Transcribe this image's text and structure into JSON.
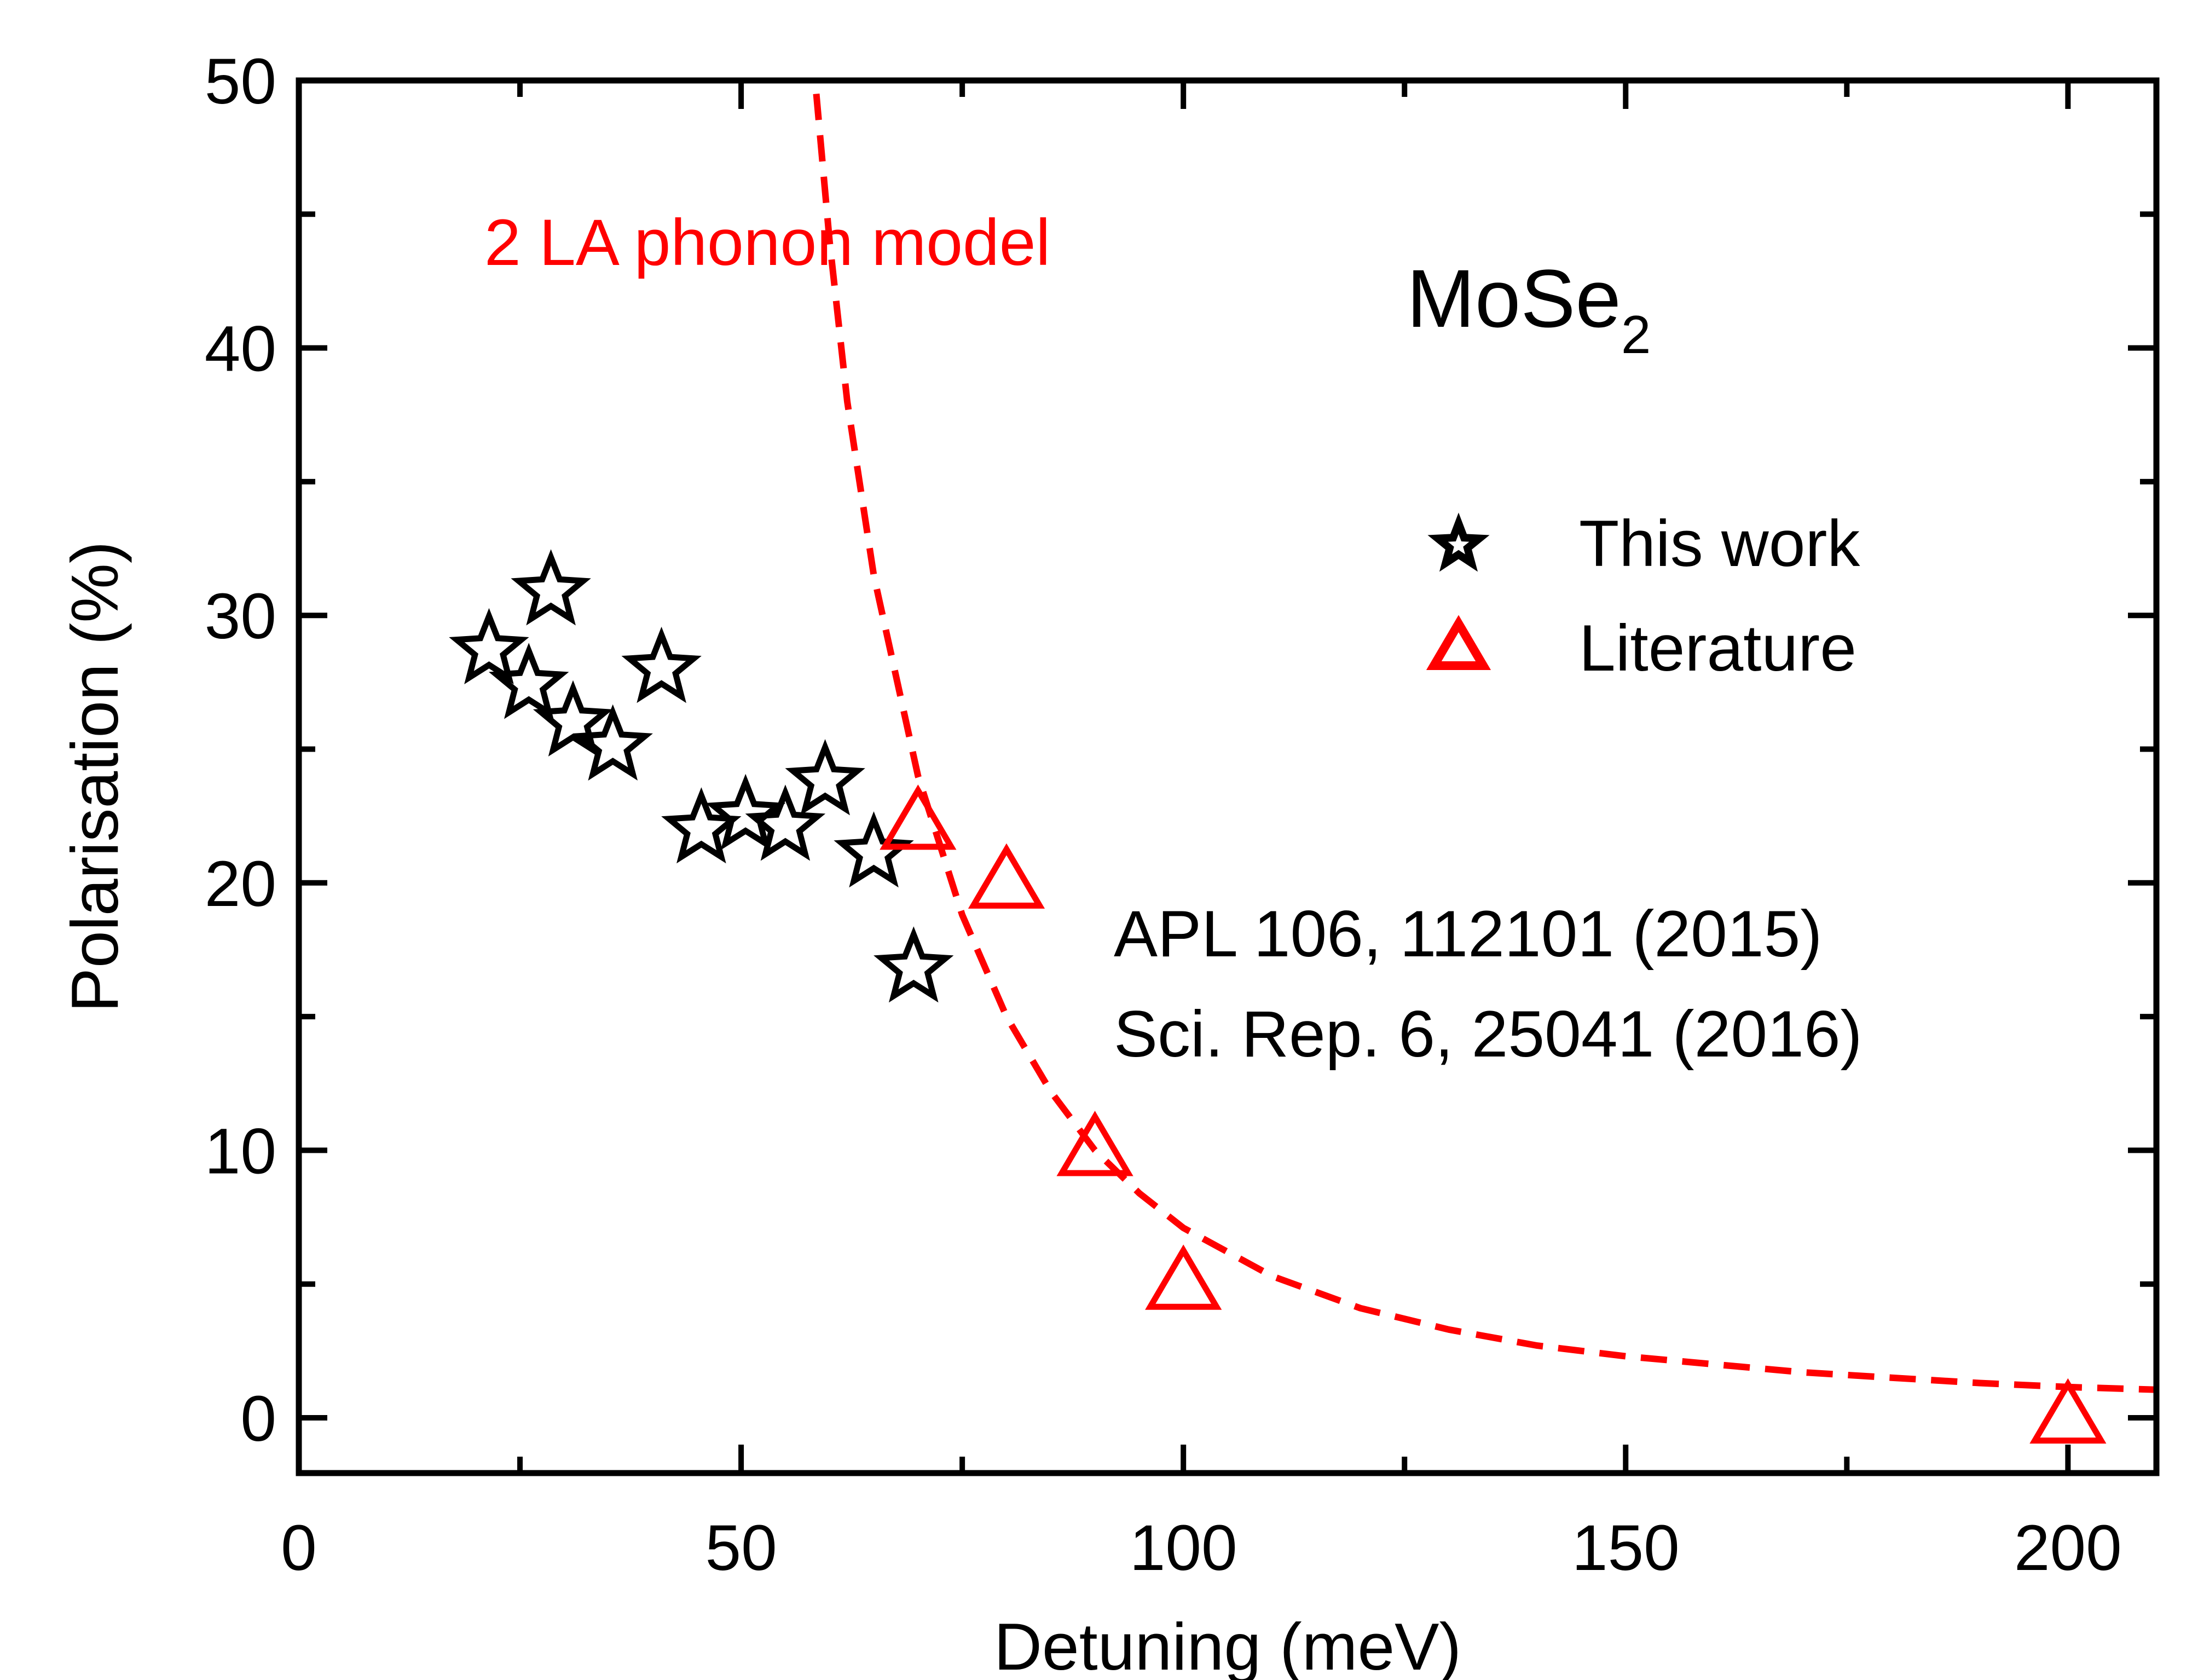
{
  "chart_data": {
    "type": "scatter",
    "title": "",
    "xlabel": "Detuning (meV)",
    "ylabel": "Polarisation (%)",
    "xlim": [
      0,
      210
    ],
    "ylim": [
      -2,
      50
    ],
    "x_ticks": [
      0,
      50,
      100,
      150,
      200
    ],
    "x_tick_labels": [
      "0",
      "50",
      "100",
      "150",
      "200"
    ],
    "y_ticks": [
      0,
      10,
      20,
      30,
      40,
      50
    ],
    "y_tick_labels": [
      "0",
      "10",
      "20",
      "30",
      "40",
      "50"
    ],
    "x_minor_step": 25,
    "y_minor_step": 5,
    "sample_label": "MoSe",
    "sample_subscript": "2",
    "model_label": "2 LA phonon model",
    "references": [
      "APL 106, 112101 (2015)",
      "Sci. Rep. 6, 25041 (2016)"
    ],
    "colors": {
      "this_work": "#000000",
      "literature": "#ff0000",
      "model": "#ff0000"
    },
    "series": [
      {
        "name": "This work",
        "marker": "star",
        "x": [
          21.5,
          26,
          28.5,
          31,
          35.5,
          41,
          45.5,
          50.5,
          55,
          59.5,
          65,
          69.5
        ],
        "y": [
          28.7,
          27.4,
          30.9,
          26.0,
          25.1,
          28.0,
          22.0,
          22.5,
          22.1,
          23.8,
          21.1,
          16.8
        ]
      },
      {
        "name": "Literature",
        "marker": "triangle",
        "x": [
          70,
          80,
          90,
          100,
          200
        ],
        "y": [
          22.2,
          20.0,
          10.0,
          5.0,
          0.0
        ]
      },
      {
        "name": "2 LA phonon model",
        "marker": "dashed-line",
        "x": [
          58.5,
          60,
          62,
          65,
          70,
          75,
          80,
          85,
          90,
          95,
          100,
          110,
          120,
          130,
          140,
          150,
          160,
          170,
          180,
          190,
          200,
          210
        ],
        "y": [
          49.5,
          44.0,
          38.0,
          31.5,
          24.0,
          18.8,
          15.0,
          12.2,
          10.0,
          8.4,
          7.1,
          5.3,
          4.1,
          3.3,
          2.7,
          2.3,
          2.0,
          1.7,
          1.5,
          1.3,
          1.15,
          1.05
        ]
      }
    ]
  }
}
